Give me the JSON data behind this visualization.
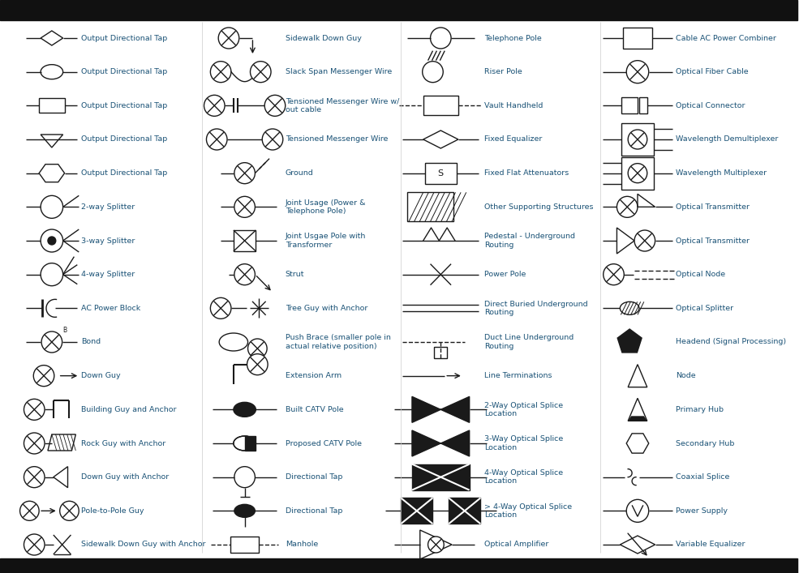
{
  "bg_color": "#ffffff",
  "symbol_color": "#1a1a1a",
  "text_color": "#1a5276",
  "figsize": [
    10.01,
    7.07
  ],
  "dpi": 100,
  "col1_labels": [
    "Output Directional Tap",
    "Output Directional Tap",
    "Output Directional Tap",
    "Output Directional Tap",
    "Output Directional Tap",
    "2-way Splitter",
    "3-way Splitter",
    "4-way Splitter",
    "AC Power Block",
    "Bond",
    "Down Guy",
    "Building Guy and Anchor",
    "Rock Guy with Anchor",
    "Down Guy with Anchor",
    "Pole-to-Pole Guy",
    "Sidewalk Down Guy with Anchor"
  ],
  "col2_labels": [
    "Sidewalk Down Guy",
    "Slack Span Messenger Wire",
    "Tensioned Messenger Wire w/\nout cable",
    "Tensioned Messenger Wire",
    "Ground",
    "Joint Usage (Power &\nTelephone Pole)",
    "Joint Usgae Pole with\nTransformer",
    "Strut",
    "Tree Guy with Anchor",
    "Push Brace (smaller pole in\nactual relative position)",
    "Extension Arm",
    "Built CATV Pole",
    "Proposed CATV Pole",
    "Directional Tap",
    "Directional Tap",
    "Manhole"
  ],
  "col3_labels": [
    "Telephone Pole",
    "Riser Pole",
    "Vault Handheld",
    "Fixed Equalizer",
    "Fixed Flat Attenuators",
    "Other Supporting Structures",
    "Pedestal - Underground\nRouting",
    "Power Pole",
    "Direct Buried Underground\nRouting",
    "Duct Line Underground\nRouting",
    "Line Terminations",
    "2-Way Optical Splice\nLocation",
    "3-Way Optical Splice\nLocation",
    "4-Way Optical Splice\nLocation",
    "> 4-Way Optical Splice\nLocation",
    "Optical Amplifier"
  ],
  "col4_labels": [
    "Cable AC Power Combiner",
    "Optical Fiber Cable",
    "Optical Connector",
    "Wavelength Demultiplexer",
    "Wavelength Multiplexer",
    "Optical Transmitter",
    "Optical Transmitter",
    "Optical Node",
    "Optical Splitter",
    "Headend (Signal Processing)",
    "Node",
    "Primary Hub",
    "Secondary Hub",
    "Coaxial Splice",
    "Power Supply",
    "Variable Equalizer"
  ]
}
